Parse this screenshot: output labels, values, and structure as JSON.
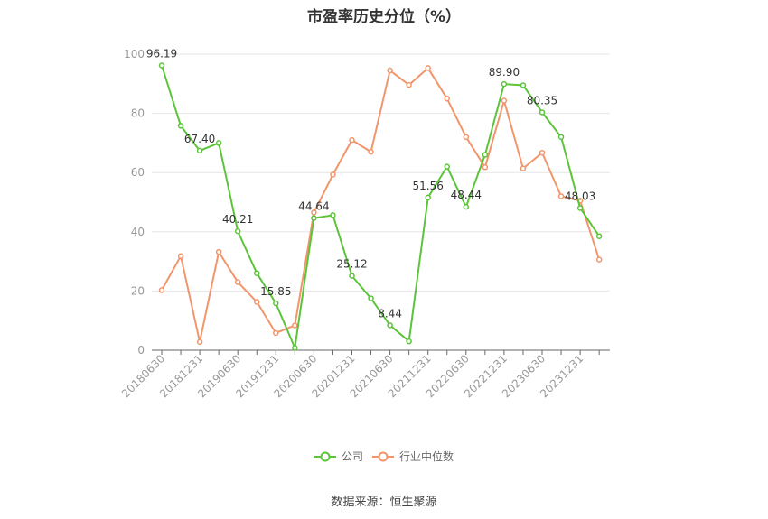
{
  "title": "市盈率历史分位（%）",
  "source": "数据来源：恒生聚源",
  "chart_data": {
    "type": "line",
    "title": "市盈率历史分位（%）",
    "xlabel": "",
    "ylabel": "",
    "ylim": [
      0,
      100
    ],
    "yticks": [
      0,
      20,
      40,
      60,
      80,
      100
    ],
    "grid": true,
    "legend_position": "bottom",
    "x": [
      "20180630",
      "20180930",
      "20181231",
      "20190331",
      "20190630",
      "20190930",
      "20191231",
      "20200331",
      "20200630",
      "20200930",
      "20201231",
      "20210331",
      "20210630",
      "20210930",
      "20211231",
      "20220331",
      "20220630",
      "20220930",
      "20221231",
      "20230331",
      "20230630",
      "20230930",
      "20231231",
      "20240331"
    ],
    "xtick_labels": [
      "20180630",
      "20181231",
      "20190630",
      "20191231",
      "20200630",
      "20201231",
      "20210630",
      "20211231",
      "20220630",
      "20221231",
      "20230630",
      "20231231"
    ],
    "series": [
      {
        "name": "公司",
        "color": "#5cc43a",
        "values": [
          96.19,
          75.8,
          67.4,
          70.0,
          40.21,
          26.0,
          15.85,
          0.8,
          44.64,
          45.6,
          25.12,
          17.5,
          8.44,
          3.0,
          51.56,
          62.0,
          48.44,
          66.0,
          89.9,
          89.5,
          80.35,
          72.0,
          48.03,
          38.5
        ],
        "labels": [
          {
            "index": 0,
            "text": "96.19"
          },
          {
            "index": 2,
            "text": "67.40"
          },
          {
            "index": 4,
            "text": "40.21"
          },
          {
            "index": 6,
            "text": "15.85"
          },
          {
            "index": 8,
            "text": "44.64"
          },
          {
            "index": 10,
            "text": "25.12"
          },
          {
            "index": 12,
            "text": "8.44"
          },
          {
            "index": 14,
            "text": "51.56"
          },
          {
            "index": 16,
            "text": "48.44"
          },
          {
            "index": 18,
            "text": "89.90"
          },
          {
            "index": 20,
            "text": "80.35"
          },
          {
            "index": 22,
            "text": "48.03"
          }
        ]
      },
      {
        "name": "行业中位数",
        "color": "#f2956b",
        "values": [
          20.3,
          31.8,
          2.8,
          33.2,
          23.0,
          16.3,
          5.8,
          8.4,
          46.5,
          59.3,
          71.0,
          67.0,
          94.5,
          89.6,
          95.3,
          85.0,
          72.0,
          61.8,
          84.3,
          61.4,
          66.7,
          52.0,
          50.5,
          30.6
        ]
      }
    ]
  }
}
